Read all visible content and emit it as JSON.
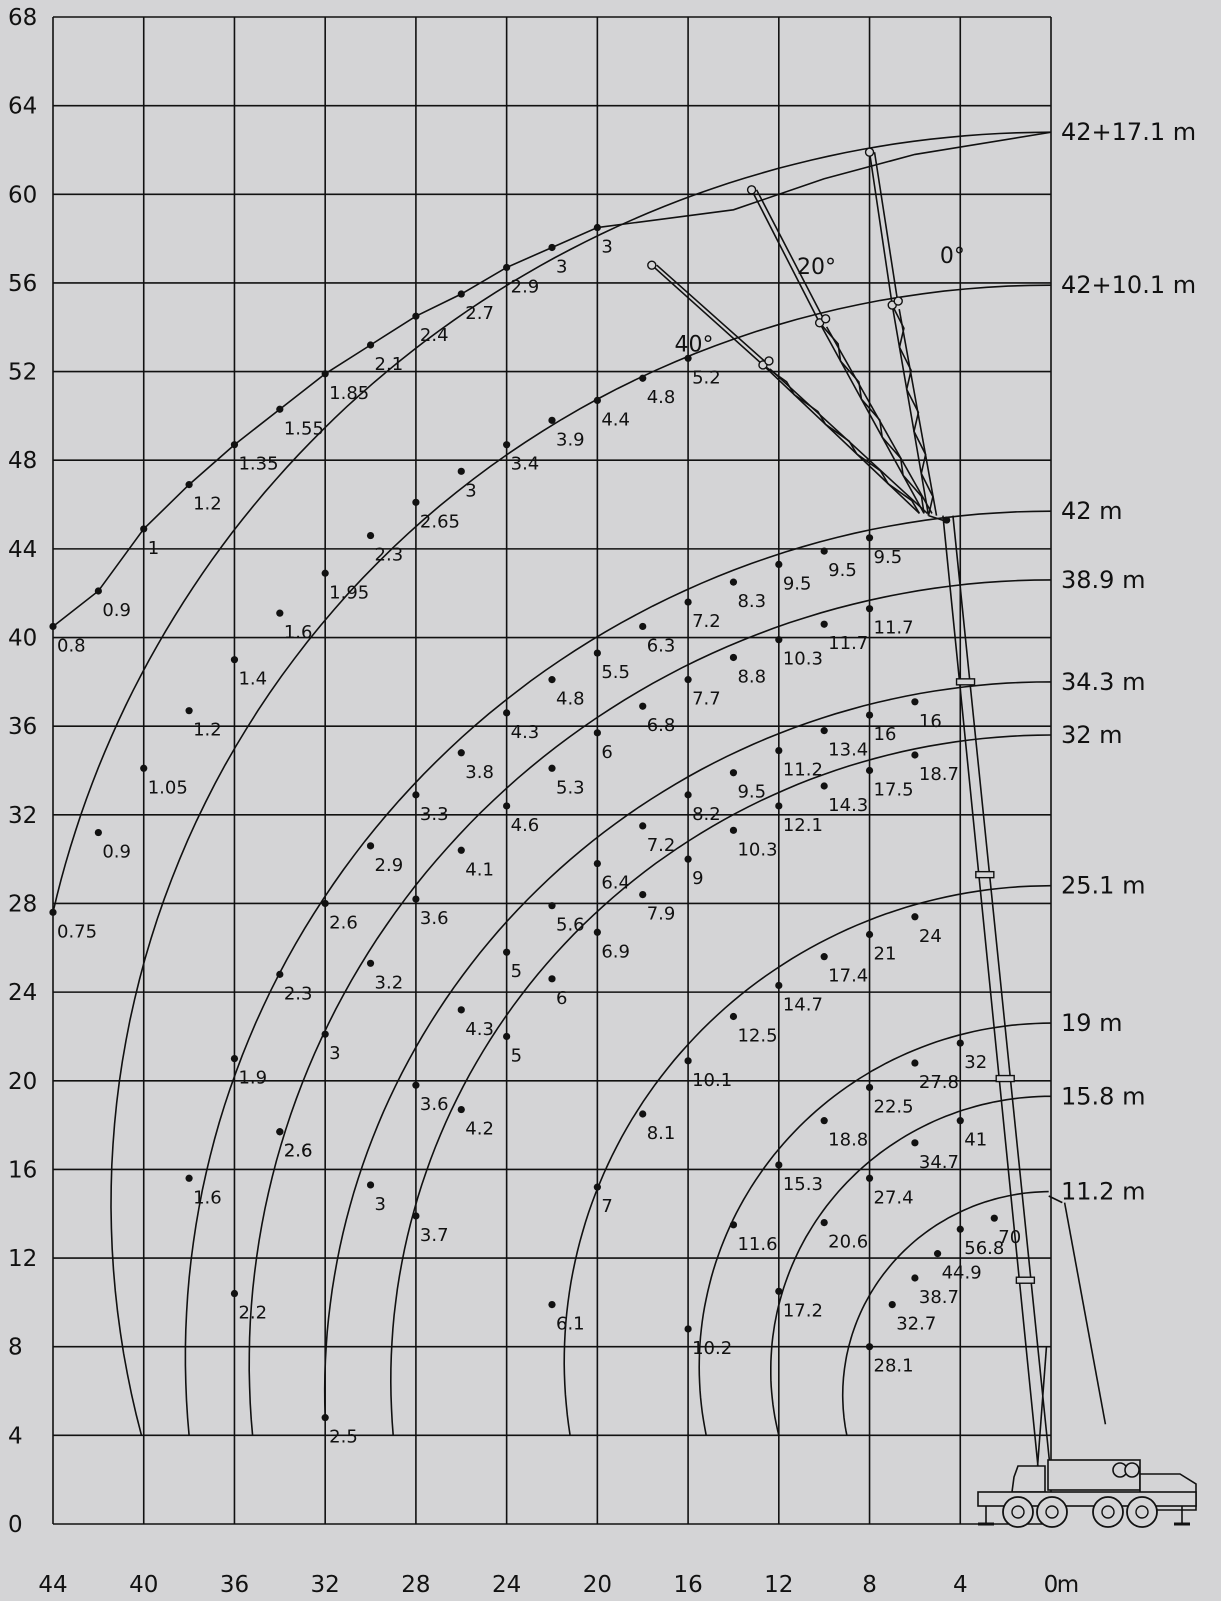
{
  "chart_data": {
    "type": "line",
    "title": "",
    "xlabel": "",
    "ylabel": "",
    "x_unit_label": "m",
    "xlim": [
      44,
      0
    ],
    "ylim": [
      0,
      68
    ],
    "x_ticks": [
      "44",
      "40",
      "36",
      "32",
      "28",
      "24",
      "20",
      "16",
      "12",
      "8",
      "4",
      "0"
    ],
    "y_ticks": [
      "0",
      "4",
      "8",
      "12",
      "16",
      "20",
      "24",
      "28",
      "32",
      "36",
      "40",
      "44",
      "48",
      "52",
      "56",
      "60",
      "64",
      "68"
    ],
    "series": [
      {
        "name": "11.2  m",
        "label_y": 15.0,
        "arc": {
          "start": [
            9,
            4
          ],
          "end": [
            0.1,
            15.0
          ]
        },
        "points": [
          [
            8,
            8,
            "28.1"
          ],
          [
            7,
            9.9,
            "32.7"
          ],
          [
            6,
            11.1,
            "38.7"
          ],
          [
            5,
            12.2,
            "44.9"
          ],
          [
            4,
            13.3,
            "56.8"
          ],
          [
            2.5,
            13.8,
            "70"
          ]
        ]
      },
      {
        "name": "15.8  m",
        "label_y": 19.3,
        "arc": {
          "start": [
            12,
            4
          ],
          "end": [
            0,
            19.3
          ]
        },
        "points": [
          [
            12,
            10.5,
            "17.2"
          ],
          [
            10,
            13.6,
            "20.6"
          ],
          [
            8,
            15.6,
            "27.4"
          ],
          [
            6,
            17.2,
            "34.7"
          ],
          [
            4,
            18.2,
            "41"
          ]
        ]
      },
      {
        "name": "19  m",
        "label_y": 22.6,
        "arc": {
          "start": [
            15.2,
            4
          ],
          "end": [
            0,
            22.6
          ]
        },
        "points": [
          [
            16,
            8.8,
            "10.2"
          ],
          [
            14,
            13.5,
            "11.6"
          ],
          [
            12,
            16.2,
            "15.3"
          ],
          [
            10,
            18.2,
            "18.8"
          ],
          [
            8,
            19.7,
            "22.5"
          ],
          [
            6,
            20.8,
            "27.8"
          ],
          [
            4,
            21.7,
            "32"
          ]
        ]
      },
      {
        "name": "25.1  m",
        "label_y": 28.8,
        "arc": {
          "start": [
            21.2,
            4
          ],
          "end": [
            0,
            28.8
          ]
        },
        "points": [
          [
            22,
            9.9,
            "6.1"
          ],
          [
            20,
            15.2,
            "7"
          ],
          [
            18,
            18.5,
            "8.1"
          ],
          [
            16,
            20.9,
            "10.1"
          ],
          [
            14,
            22.9,
            "12.5"
          ],
          [
            12,
            24.3,
            "14.7"
          ],
          [
            10,
            25.6,
            "17.4"
          ],
          [
            8,
            26.6,
            "21"
          ],
          [
            6,
            27.4,
            "24"
          ]
        ]
      },
      {
        "name": "32  m",
        "label_y": 35.6,
        "arc": {
          "start": [
            29,
            4
          ],
          "end": [
            0,
            35.6
          ]
        },
        "points": [
          [
            28,
            13.9,
            "3.7"
          ],
          [
            26,
            18.7,
            "4.2"
          ],
          [
            24,
            22,
            "5"
          ],
          [
            22,
            24.6,
            "6"
          ],
          [
            20,
            26.7,
            "6.9"
          ],
          [
            18,
            28.4,
            "7.9"
          ],
          [
            16,
            30,
            "9"
          ],
          [
            14,
            31.3,
            "10.3"
          ],
          [
            12,
            32.4,
            "12.1"
          ],
          [
            10,
            33.3,
            "14.3"
          ],
          [
            8,
            34,
            "17.5"
          ],
          [
            6,
            34.7,
            "18.7"
          ]
        ]
      },
      {
        "name": "34.3  m",
        "label_y": 38.0,
        "arc": {
          "start": [
            32,
            4.8
          ],
          "end": [
            0,
            38.0
          ]
        },
        "points": [
          [
            32,
            4.8,
            "2.5"
          ],
          [
            30,
            15.3,
            "3"
          ],
          [
            28,
            19.8,
            "3.6"
          ],
          [
            26,
            23.2,
            "4.3"
          ],
          [
            24,
            25.8,
            "5"
          ],
          [
            22,
            27.9,
            "5.6"
          ],
          [
            20,
            29.8,
            "6.4"
          ],
          [
            18,
            31.5,
            "7.2"
          ],
          [
            16,
            32.9,
            "8.2"
          ],
          [
            14,
            33.9,
            "9.5"
          ],
          [
            12,
            34.9,
            "11.2"
          ],
          [
            10,
            35.8,
            "13.4"
          ],
          [
            8,
            36.5,
            "16"
          ],
          [
            6,
            37.1,
            "16"
          ]
        ]
      },
      {
        "name": "38.9  m",
        "label_y": 42.6,
        "arc": {
          "start": [
            35.2,
            4
          ],
          "end": [
            0,
            42.6
          ]
        },
        "points": [
          [
            34,
            17.7,
            "2.6"
          ],
          [
            32,
            22.1,
            "3"
          ],
          [
            30,
            25.3,
            "3.2"
          ],
          [
            28,
            28.2,
            "3.6"
          ],
          [
            26,
            30.4,
            "4.1"
          ],
          [
            24,
            32.4,
            "4.6"
          ],
          [
            22,
            34.1,
            "5.3"
          ],
          [
            20,
            35.7,
            "6"
          ],
          [
            18,
            36.9,
            "6.8"
          ],
          [
            16,
            38.1,
            "7.7"
          ],
          [
            14,
            39.1,
            "8.8"
          ],
          [
            12,
            39.9,
            "10.3"
          ],
          [
            10,
            40.6,
            "11.7"
          ],
          [
            8,
            41.3,
            "11.7"
          ]
        ]
      },
      {
        "name": "42  m",
        "label_y": 45.7,
        "arc": {
          "start": [
            38,
            4
          ],
          "end": [
            0,
            45.7
          ]
        },
        "points": [
          [
            36,
            10.4,
            "2.2"
          ],
          [
            34,
            17.7,
            "2.6"
          ]
        ]
      },
      {
        "name": "42+10.1  m",
        "label_y": 55.9,
        "arc": {
          "start": [
            40.1,
            4
          ],
          "end": [
            0,
            55.9
          ]
        },
        "points": [
          [
            38,
            15.6,
            "1.6"
          ],
          [
            36,
            21,
            "1.9"
          ],
          [
            34,
            24.8,
            "2.3"
          ],
          [
            32,
            28,
            "2.6"
          ],
          [
            30,
            30.6,
            "2.9"
          ],
          [
            28,
            32.9,
            "3.3"
          ],
          [
            26,
            34.8,
            "3.8"
          ],
          [
            24,
            36.6,
            "4.3"
          ],
          [
            22,
            38.1,
            "4.8"
          ],
          [
            20,
            39.3,
            "5.5"
          ],
          [
            18,
            40.5,
            "6.3"
          ],
          [
            16,
            41.6,
            "7.2"
          ],
          [
            14,
            42.5,
            "8.3"
          ],
          [
            12,
            43.3,
            "9.5"
          ],
          [
            10,
            43.9,
            "9.5"
          ],
          [
            8,
            44.5,
            "9.5"
          ]
        ]
      },
      {
        "name": "42+17.1  m",
        "label_y": 62.8,
        "arc": {
          "start": [
            44,
            27.6
          ],
          "end": [
            0,
            62.8
          ]
        },
        "points": [
          [
            44,
            27.6,
            "0.75"
          ],
          [
            42,
            31.2,
            "0.9"
          ],
          [
            40,
            34.1,
            "1.05"
          ],
          [
            38,
            36.7,
            "1.2"
          ],
          [
            36,
            39,
            "1.4"
          ],
          [
            34,
            41.1,
            "1.6"
          ],
          [
            32,
            42.9,
            "1.95"
          ],
          [
            30,
            44.6,
            "2.3"
          ],
          [
            28,
            46.1,
            "2.65"
          ],
          [
            26,
            47.5,
            "3"
          ],
          [
            24,
            48.7,
            "3.4"
          ],
          [
            22,
            49.8,
            "3.9"
          ],
          [
            20,
            50.7,
            "4.4"
          ],
          [
            18,
            51.7,
            "4.8"
          ],
          [
            16,
            52.6,
            "5.2"
          ]
        ]
      },
      {
        "name": "",
        "label_y": null,
        "arc": null,
        "points": [
          [
            44,
            40.5,
            "0.8"
          ],
          [
            42,
            42.1,
            "0.9"
          ],
          [
            40,
            44.9,
            "1"
          ],
          [
            38,
            46.9,
            "1.2"
          ],
          [
            36,
            48.7,
            "1.35"
          ],
          [
            34,
            50.3,
            "1.55"
          ],
          [
            32,
            51.9,
            "1.85"
          ],
          [
            30,
            53.2,
            "2.1"
          ],
          [
            28,
            54.5,
            "2.4"
          ],
          [
            26,
            55.5,
            "2.7"
          ],
          [
            24,
            56.7,
            "2.9"
          ],
          [
            22,
            57.6,
            "3"
          ],
          [
            20,
            58.5,
            "3"
          ]
        ]
      }
    ],
    "jib_angles": [
      "40°",
      "20°",
      "0°"
    ],
    "grid": true,
    "legend": "none"
  }
}
